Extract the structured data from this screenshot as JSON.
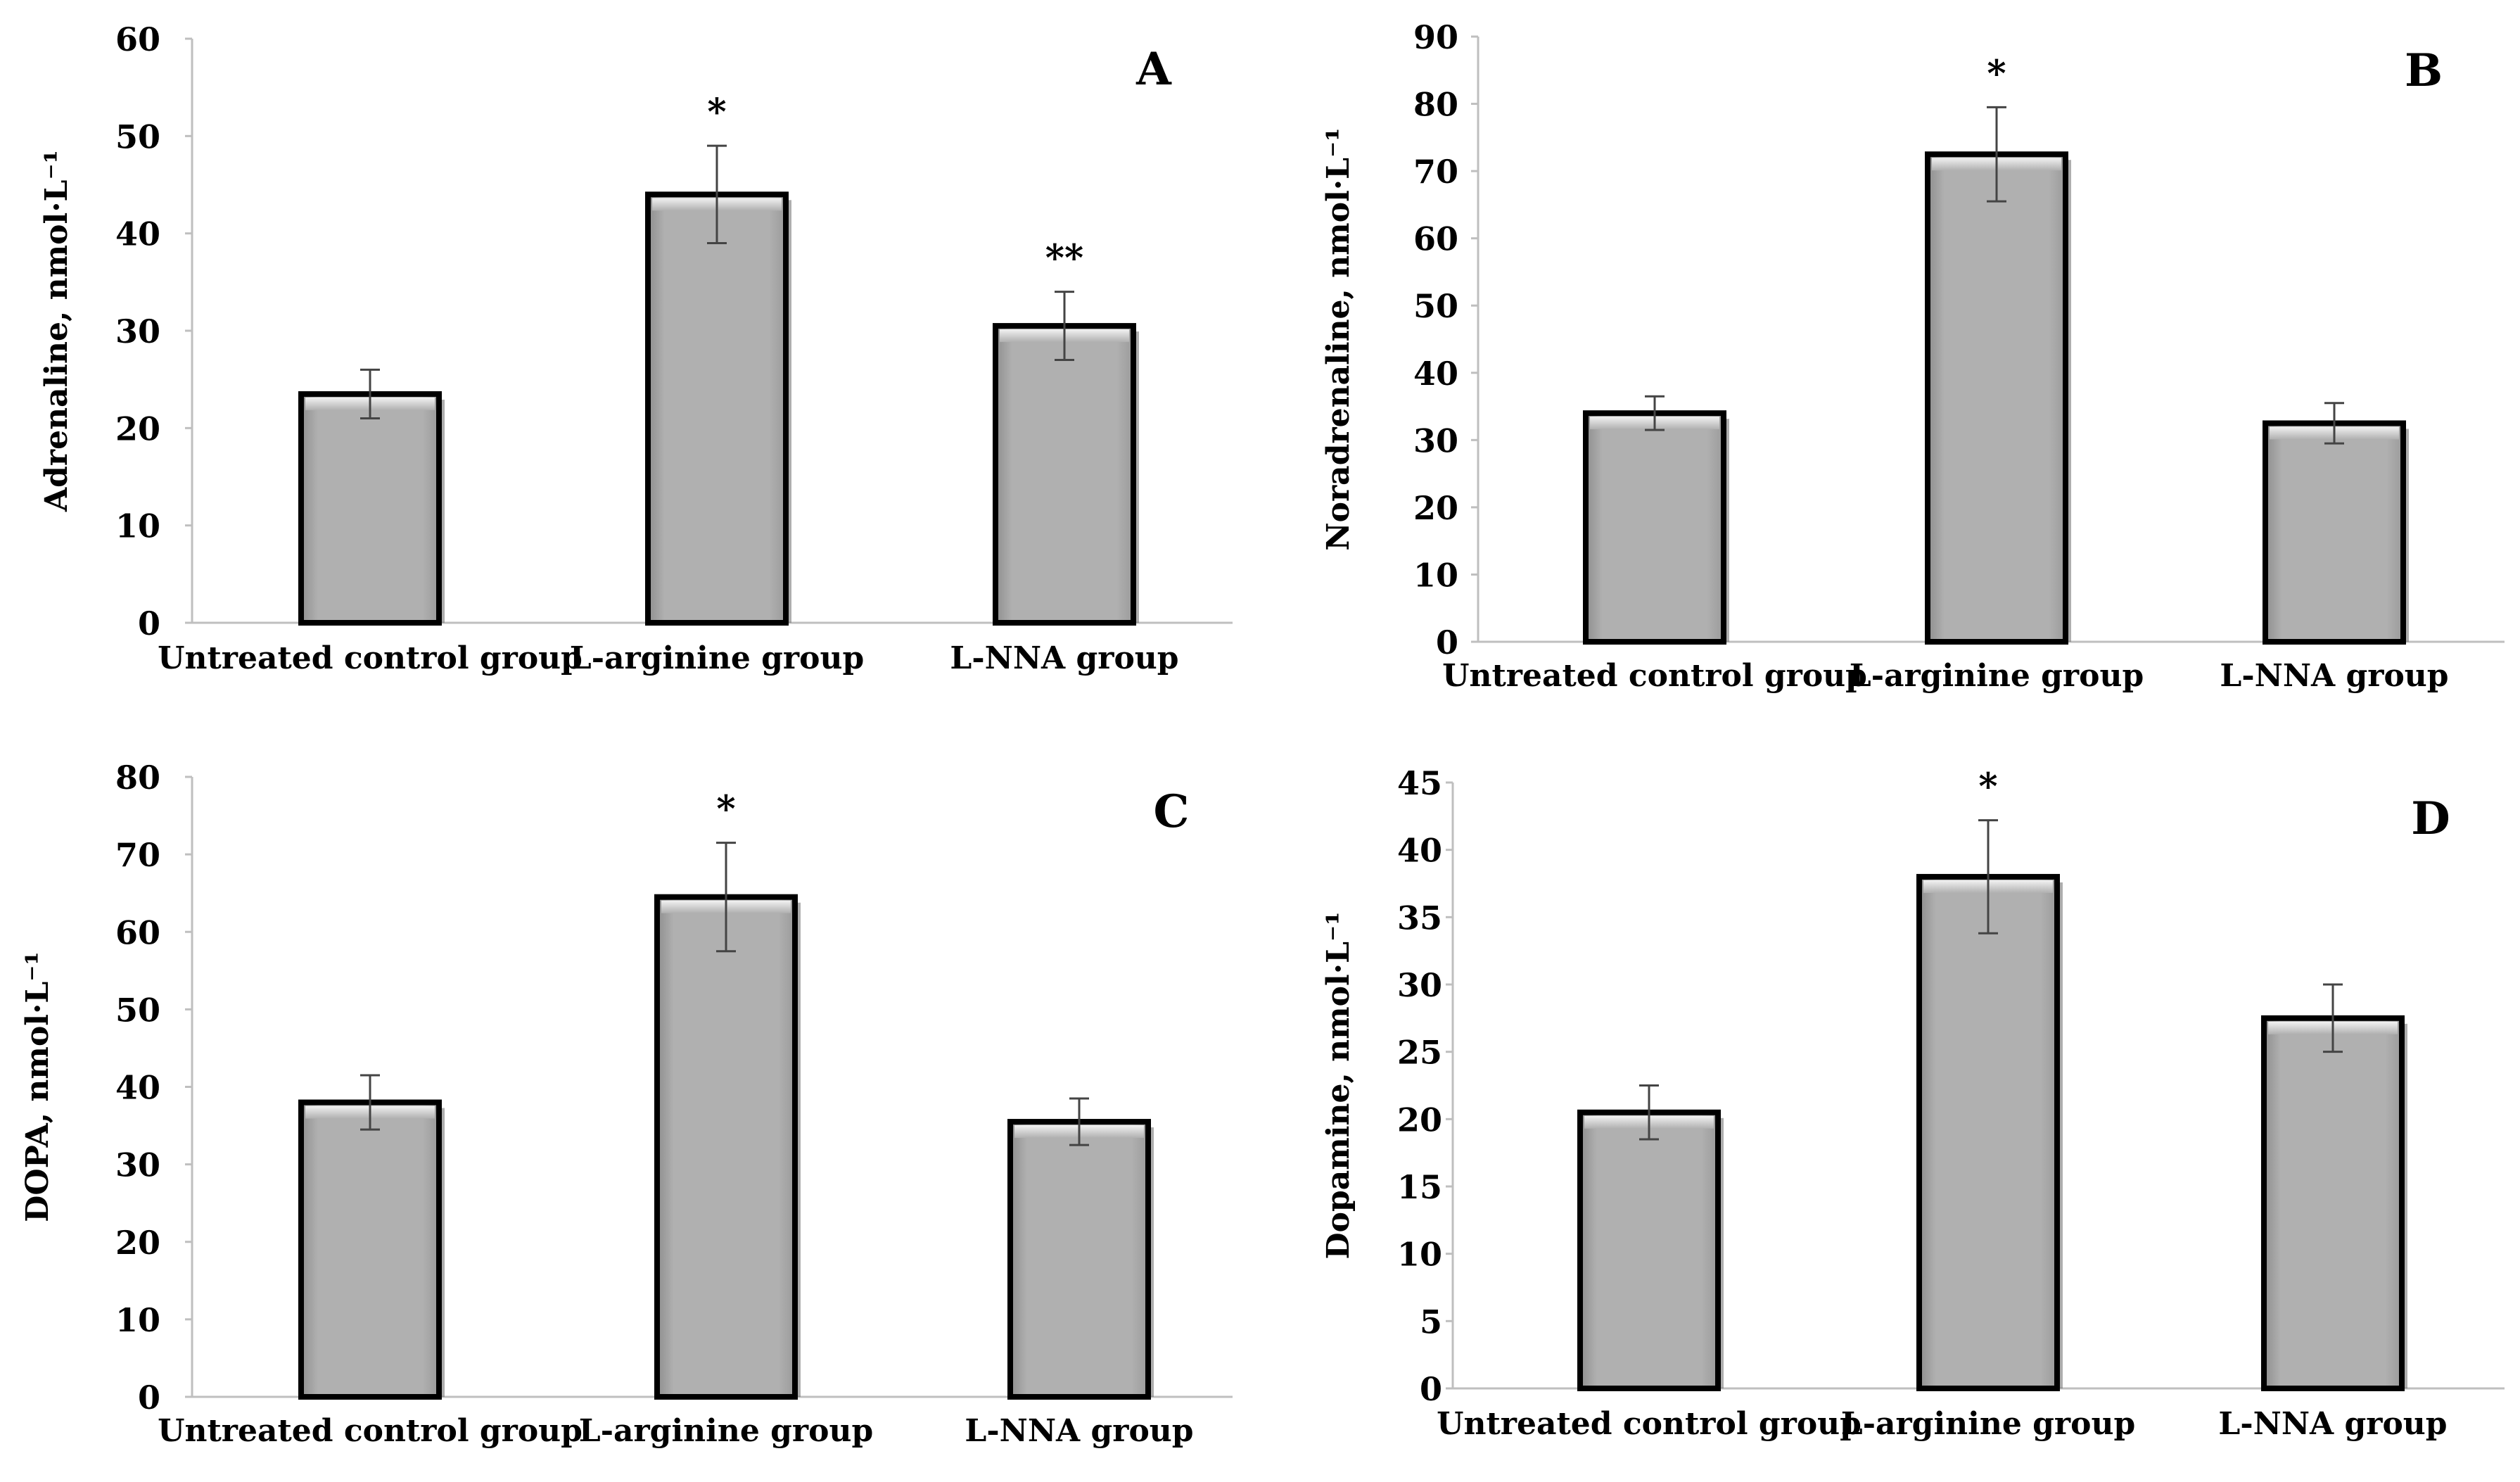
{
  "colors": {
    "bar_fill": "#b0b0b0",
    "bar_highlight": "#e6e6e6",
    "bar_edge": "#000000",
    "axis": "#bfbfbf",
    "text": "#000000",
    "error_bar": "#444444"
  },
  "chart_data": [
    {
      "id": "A",
      "type": "bar",
      "panel_label": "A",
      "title": "",
      "xlabel": "",
      "ylabel": "Adrenaline, nmol·L⁻¹",
      "categories": [
        "Untreated control group",
        "L-arginine group",
        "L-NNA group"
      ],
      "values": [
        23.5,
        44,
        30.5
      ],
      "errors": [
        2.5,
        5,
        3.5
      ],
      "annotations": [
        "",
        "*",
        "**"
      ],
      "ylim": [
        0,
        60
      ],
      "yticks": [
        0,
        10,
        20,
        30,
        40,
        50,
        60
      ],
      "grid": false
    },
    {
      "id": "B",
      "type": "bar",
      "panel_label": "B",
      "title": "",
      "xlabel": "",
      "ylabel": "Noradrenaline, nmol·L⁻¹",
      "categories": [
        "Untreated control group",
        "L-arginine group",
        "L-NNA group"
      ],
      "values": [
        34,
        72.5,
        32.5
      ],
      "errors": [
        2.5,
        7,
        3
      ],
      "annotations": [
        "",
        "*",
        ""
      ],
      "ylim": [
        0,
        90
      ],
      "yticks": [
        0,
        10,
        20,
        30,
        40,
        50,
        60,
        70,
        80,
        90
      ],
      "grid": false
    },
    {
      "id": "C",
      "type": "bar",
      "panel_label": "C",
      "title": "",
      "xlabel": "",
      "ylabel": "DOPA, nmol·L⁻¹",
      "categories": [
        "Untreated control group",
        "L-arginine group",
        "L-NNA group"
      ],
      "values": [
        38,
        64.5,
        35.5
      ],
      "errors": [
        3.5,
        7,
        3
      ],
      "annotations": [
        "",
        "*",
        ""
      ],
      "ylim": [
        0,
        80
      ],
      "yticks": [
        0,
        10,
        20,
        30,
        40,
        50,
        60,
        70,
        80
      ],
      "grid": false
    },
    {
      "id": "D",
      "type": "bar",
      "panel_label": "D",
      "title": "",
      "xlabel": "",
      "ylabel": "Dopamine, nmol·L⁻¹",
      "categories": [
        "Untreated control group",
        "L-arginine group",
        "L-NNA group"
      ],
      "values": [
        20.5,
        38,
        27.5
      ],
      "errors": [
        2,
        4.2,
        2.5
      ],
      "annotations": [
        "",
        "*",
        ""
      ],
      "ylim": [
        0,
        45
      ],
      "yticks": [
        0,
        5,
        10,
        15,
        20,
        25,
        30,
        35,
        40,
        45
      ],
      "grid": false
    }
  ]
}
